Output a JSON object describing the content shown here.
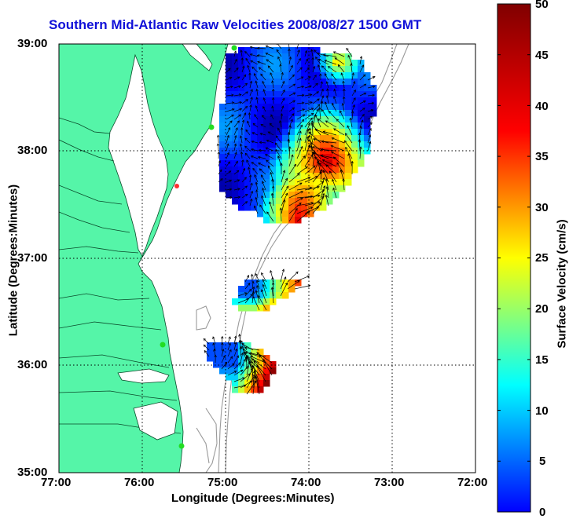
{
  "title": "Southern Mid-Atlantic Raw Velocities 2008/08/27 1500 GMT",
  "x_axis": {
    "label": "Longitude (Degrees:Minutes)",
    "ticks": [
      "77:00",
      "76:00",
      "75:00",
      "74:00",
      "73:00",
      "72:00"
    ]
  },
  "y_axis": {
    "label": "Latitude (Degrees:Minutes)",
    "ticks": [
      "39:00",
      "38:00",
      "37:00",
      "36:00",
      "35:00"
    ]
  },
  "colorbar": {
    "label": "Surface Velocity (cm/s)",
    "ticks": [
      "50",
      "45",
      "40",
      "35",
      "30",
      "25",
      "20",
      "15",
      "10",
      "5",
      "0"
    ],
    "range": [
      0,
      50
    ],
    "colormap": "jet"
  },
  "colors": {
    "land": "#55f5a8",
    "title": "#1010d8",
    "bathymetry": "#9a9a9a",
    "station": "#22dd22"
  },
  "map": {
    "lon_range": [
      -77,
      -72
    ],
    "lat_range": [
      35,
      39
    ],
    "grid": true
  }
}
